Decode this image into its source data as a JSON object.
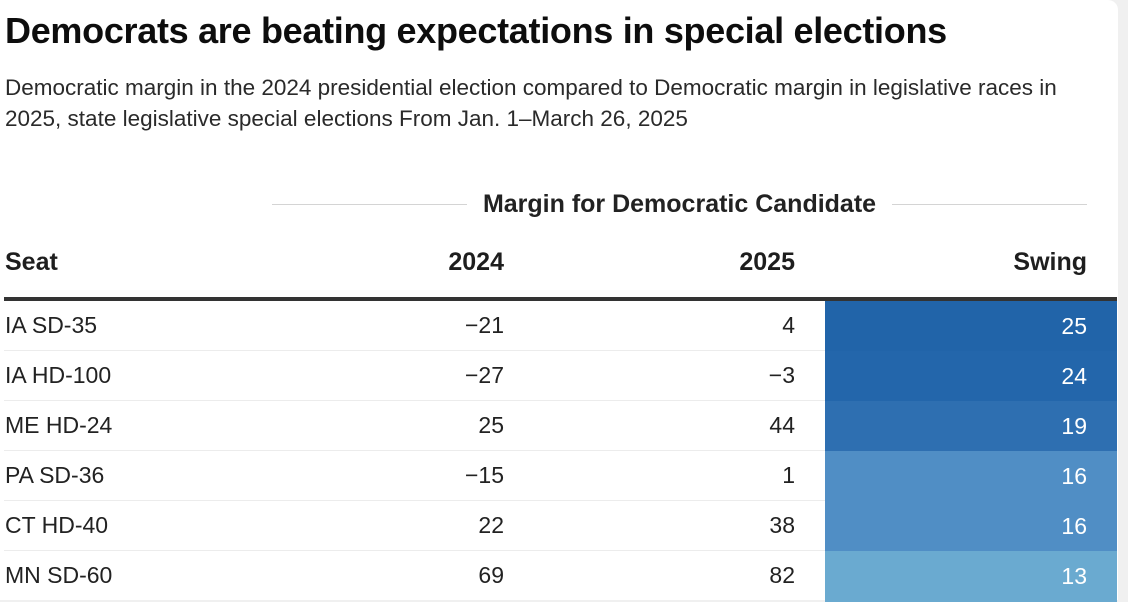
{
  "header": {
    "title": "Democrats are beating expectations in special elections",
    "subtitle": "Democratic margin in the 2024 presidential election compared to Democratic margin in legislative races in 2025, state legislative special elections From Jan. 1–March 26, 2025"
  },
  "table": {
    "spanner_label": "Margin for Democratic Candidate",
    "columns": [
      "Seat",
      "2024",
      "2025",
      "Swing"
    ]
  },
  "chart_data": {
    "type": "table",
    "title": "Democrats are beating expectations in special elections",
    "subtitle": "Democratic margin in the 2024 presidential election compared to Democratic margin in legislative races in 2025, state legislative special elections From Jan. 1–March 26, 2025",
    "column_group": "Margin for Democratic Candidate",
    "columns": [
      "Seat",
      "2024",
      "2025",
      "Swing"
    ],
    "rows": [
      {
        "seat": "IA SD-35",
        "y2024": "−21",
        "y2025": "4",
        "swing": "25",
        "swing_value": 25
      },
      {
        "seat": "IA HD-100",
        "y2024": "−27",
        "y2025": "−3",
        "swing": "24",
        "swing_value": 24
      },
      {
        "seat": "ME HD-24",
        "y2024": "25",
        "y2025": "44",
        "swing": "19",
        "swing_value": 19
      },
      {
        "seat": "PA SD-36",
        "y2024": "−15",
        "y2025": "1",
        "swing": "16",
        "swing_value": 16
      },
      {
        "seat": "CT HD-40",
        "y2024": "22",
        "y2025": "38",
        "swing": "16",
        "swing_value": 16
      },
      {
        "seat": "MN SD-60",
        "y2024": "69",
        "y2025": "82",
        "swing": "13",
        "swing_value": 13
      }
    ],
    "swing_color_scale": {
      "25": "#2164a9",
      "24": "#2366ab",
      "19": "#2e6fb1",
      "16": "#508ec5",
      "13": "#6aaad0"
    }
  }
}
